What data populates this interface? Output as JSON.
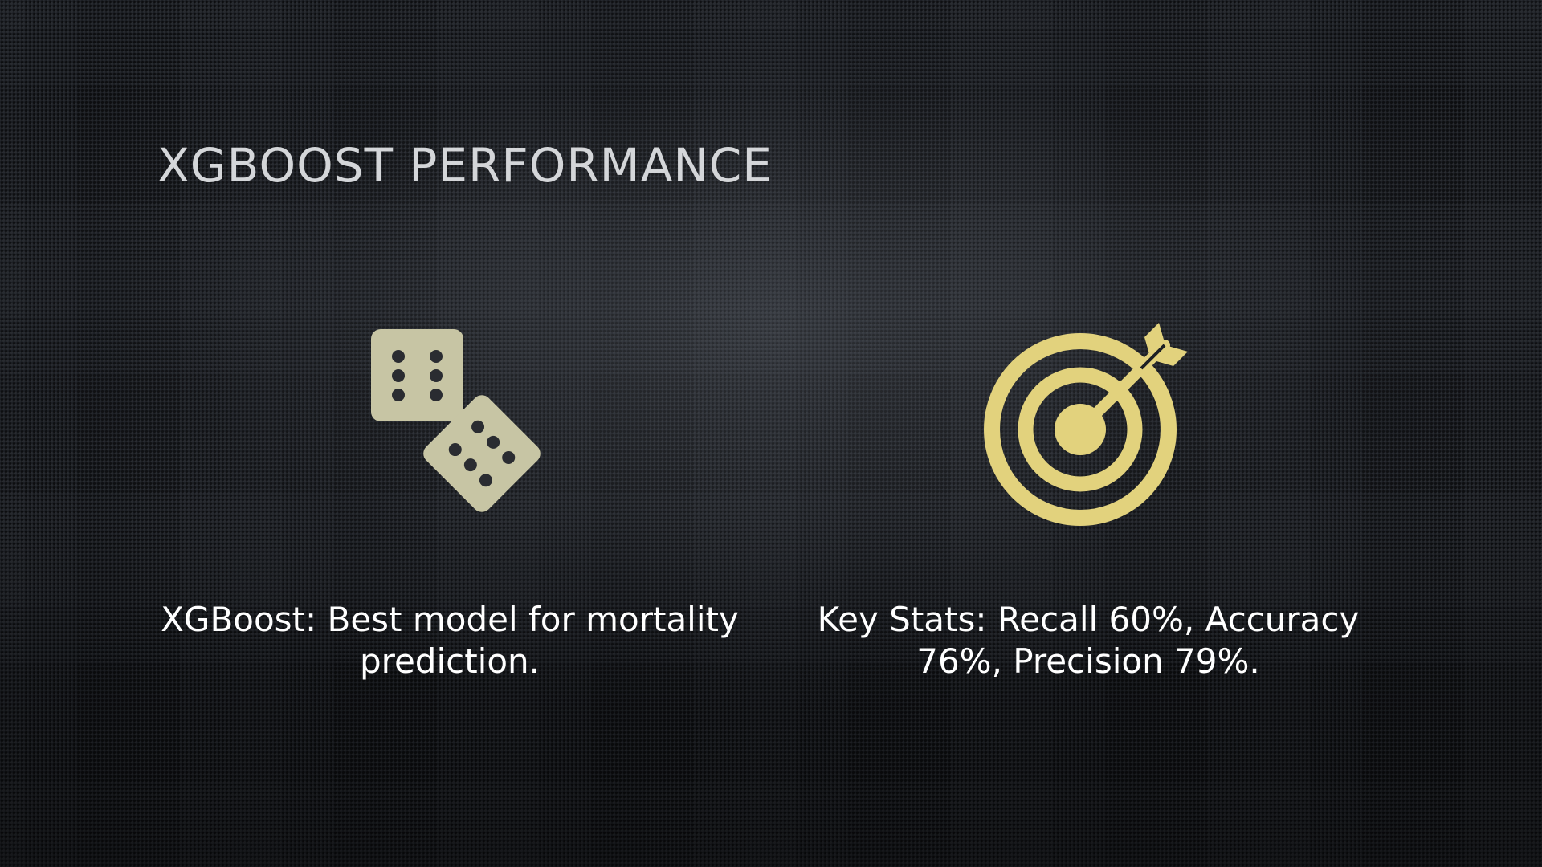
{
  "slide": {
    "title": "XGBoost Performance"
  },
  "left": {
    "icon": "dice-icon",
    "caption": "XGBoost: Best model for mortality prediction."
  },
  "right": {
    "icon": "target-icon",
    "caption": "Key Stats: Recall 60%, Accuracy 76%, Precision 79%."
  },
  "colors": {
    "dice": "#c7c5a4",
    "target": "#e2d27d",
    "title": "#d4d6d9",
    "text": "#ffffff"
  }
}
